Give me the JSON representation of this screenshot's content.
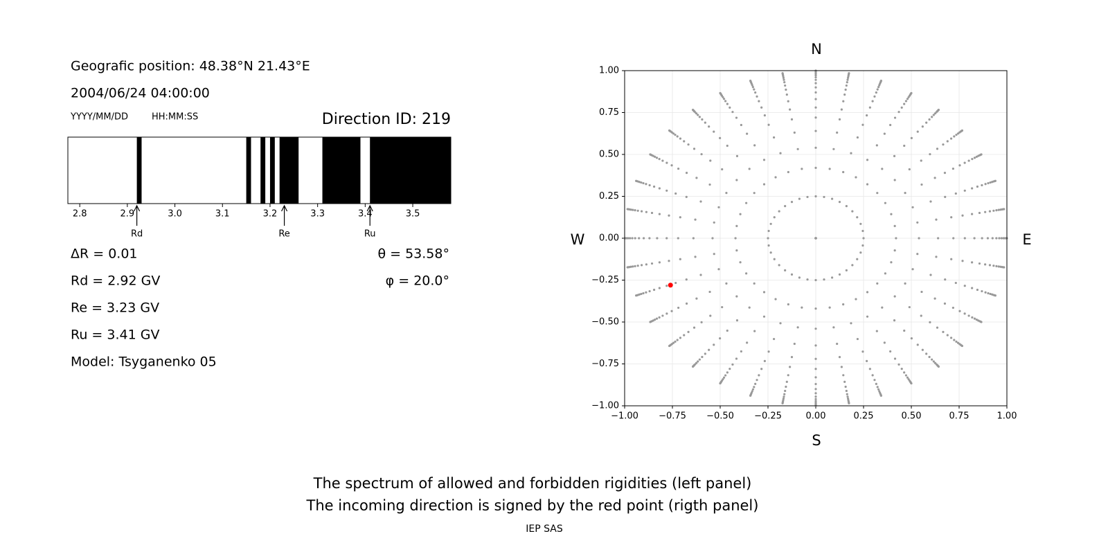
{
  "header": {
    "position": "Geografic position: 48.38°N 21.43°E",
    "datetime": "2004/06/24 04:00:00",
    "date_format": "YYYY/MM/DD",
    "time_format": "HH:MM:SS",
    "direction": "Direction ID: 219"
  },
  "results": {
    "left": [
      "ΔR = 0.01",
      "Rd = 2.92 GV",
      "Re = 3.23 GV",
      "Ru = 3.41 GV",
      "Model: Tsyganenko 05"
    ],
    "right": [
      "θ = 53.58°",
      "φ = 20.0°"
    ]
  },
  "chart_data": [
    {
      "type": "band",
      "xlim": [
        2.775,
        3.58
      ],
      "xticks": [
        2.8,
        2.9,
        {
          "value": 3,
          "label": "3.0"
        },
        3.1,
        3.2,
        3.3,
        3.4,
        3.5
      ],
      "color": "#000000",
      "forbidden": [
        [
          2.92,
          2.93
        ],
        [
          3.15,
          3.16
        ],
        [
          3.18,
          3.19
        ],
        [
          3.2,
          3.21
        ],
        [
          3.22,
          3.26
        ],
        [
          3.31,
          3.39
        ],
        [
          3.41,
          3.58
        ]
      ],
      "markers": [
        {
          "label": "Rd",
          "value": 2.92
        },
        {
          "label": "Re",
          "value": 3.23
        },
        {
          "label": "Ru",
          "value": 3.41
        }
      ]
    },
    {
      "type": "scatter",
      "xlim": [
        -1,
        1
      ],
      "ylim": [
        -1,
        1
      ],
      "xticks": [
        {
          "value": -1,
          "label": "−1.00"
        },
        {
          "value": -0.75,
          "label": "−0.75"
        },
        {
          "value": -0.5,
          "label": "−0.50"
        },
        {
          "value": -0.25,
          "label": "−0.25"
        },
        {
          "value": 0,
          "label": "0.00"
        },
        {
          "value": 0.25,
          "label": "0.25"
        },
        {
          "value": 0.5,
          "label": "0.50"
        },
        {
          "value": 0.75,
          "label": "0.75"
        },
        {
          "value": 1,
          "label": "1.00"
        }
      ],
      "yticks": [
        {
          "value": -1,
          "label": "−1.00"
        },
        {
          "value": -0.75,
          "label": "−0.75"
        },
        {
          "value": -0.5,
          "label": "−0.50"
        },
        {
          "value": -0.25,
          "label": "−0.25"
        },
        {
          "value": 0,
          "label": "0.00"
        },
        {
          "value": 0.25,
          "label": "0.25"
        },
        {
          "value": 0.5,
          "label": "0.50"
        },
        {
          "value": 0.75,
          "label": "0.75"
        },
        {
          "value": 1,
          "label": "1.00"
        }
      ],
      "grid": true,
      "compass": {
        "top": "N",
        "bottom": "S",
        "left": "W",
        "right": "E"
      },
      "directions": {
        "color": "#999999",
        "azimuths": [
          0,
          10,
          20,
          30,
          40,
          50,
          60,
          70,
          80,
          90,
          100,
          110,
          120,
          130,
          140,
          150,
          160,
          170,
          180,
          190,
          200,
          210,
          220,
          230,
          240,
          250,
          260,
          270,
          280,
          290,
          300,
          310,
          320,
          330,
          340,
          350
        ],
        "radii": [
          0,
          0.25,
          0.42,
          0.54,
          0.64,
          0.72,
          0.78,
          0.83,
          0.87,
          0.9,
          0.925,
          0.945,
          0.96,
          0.972,
          0.982,
          0.99,
          0.996,
          1
        ]
      },
      "series": [
        {
          "color": "#ff0000",
          "x": [
            -0.76
          ],
          "y": [
            -0.28
          ]
        }
      ]
    }
  ],
  "footer": {
    "line1": "The spectrum of allowed and forbidden rigidities (left panel)",
    "line2": "The incoming direction is signed by the red point (rigth panel)",
    "credit": "IEP SAS"
  }
}
